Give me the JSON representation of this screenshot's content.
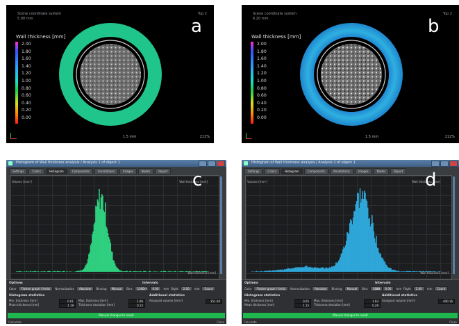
{
  "viewers": [
    {
      "id": "a",
      "header": "Scene coordinate system\n5.00 mm",
      "tag": "Top 2",
      "legend_title": "Wall thickness [mm]",
      "ticks": [
        "2.00",
        "1.80",
        "1.60",
        "1.40",
        "1.20",
        "1.00",
        "0.80",
        "0.60",
        "0.40",
        "0.20",
        "0.00"
      ],
      "panel_label": "a",
      "scale": "1.5 mm",
      "zoom": "212%",
      "ring_color": "#20c58c"
    },
    {
      "id": "b",
      "header": "Scene coordinate system\n6.20 mm",
      "tag": "Top 2",
      "legend_title": "Wall thickness [mm]",
      "ticks": [
        "2.00",
        "1.80",
        "1.60",
        "1.40",
        "1.20",
        "1.00",
        "0.80",
        "0.60",
        "0.40",
        "0.20",
        "0.00"
      ],
      "panel_label": "b",
      "scale": "1.5 mm",
      "zoom": "212%",
      "ring_color": "#2aa2d8"
    }
  ],
  "windows": [
    {
      "id": "c",
      "panel_label": "c",
      "title": "Histogram of Wall thickness analysis / Analysis 1 of object 1",
      "tabs": [
        "Settings",
        "Colors",
        "Histogram",
        "Components",
        "Annotations",
        "Images",
        "Nodes",
        "Report"
      ],
      "active_tab": "Histogram",
      "y_axis": "Volume [mm³]",
      "x_axis": "Wall thickness [mm]",
      "bin_label": "Wall thickness [mm]",
      "options_header": "Options",
      "options_row": [
        "Color",
        "Flatten graph / limits",
        "Normalization",
        "Absolute",
        "Binning",
        "Manual",
        "Bins",
        "1000"
      ],
      "intervals_header": "Intervals",
      "intervals_row": [
        "Left",
        "0.00",
        "mm",
        "Right",
        "2.00",
        "mm",
        "Count"
      ],
      "hist_stats_header": "Histogram statistics",
      "stats": [
        {
          "label": "Min. thickness [mm]",
          "value": "0.01"
        },
        {
          "label": "Mean thickness [mm]",
          "value": "1.19"
        },
        {
          "label": "Max. thickness [mm]",
          "value": "1.96"
        },
        {
          "label": "Thickness deviation [mm]",
          "value": "0.15"
        }
      ],
      "add_stats_header": "Additional statistics",
      "analyzed_label": "Analyzed volume [mm³]",
      "analyzed_value": "351.00",
      "green_bar": "Manual changes to result",
      "footer_left": "Calculate",
      "footer_right": "Close",
      "color": "#2fcf7f",
      "peak_x": 0.44
    },
    {
      "id": "d",
      "panel_label": "d",
      "title": "Histogram of Wall thickness analysis / Analysis 1 of object 1",
      "tabs": [
        "Settings",
        "Colors",
        "Histogram",
        "Components",
        "Annotations",
        "Images",
        "Nodes",
        "Report"
      ],
      "active_tab": "Histogram",
      "y_axis": "Volume [mm³]",
      "x_axis": "Wall thickness [mm]",
      "bin_label": "Wall thickness [mm]",
      "options_header": "Options",
      "options_row": [
        "Color",
        "Flatten graph / limits",
        "Normalization",
        "Absolute",
        "Binning",
        "Manual",
        "Bins",
        "1000"
      ],
      "intervals_header": "Intervals",
      "intervals_row": [
        "Left",
        "0.00",
        "mm",
        "Right",
        "2.00",
        "mm",
        "Count"
      ],
      "hist_stats_header": "Histogram statistics",
      "stats": [
        {
          "label": "Min. thickness [mm]",
          "value": "0.05"
        },
        {
          "label": "Mean thickness [mm]",
          "value": "1.15"
        },
        {
          "label": "Max. thickness [mm]",
          "value": "1.93"
        },
        {
          "label": "Thickness deviation [mm]",
          "value": "0.26"
        }
      ],
      "add_stats_header": "Additional statistics",
      "analyzed_label": "Analyzed volume [mm³]",
      "analyzed_value": "400.16",
      "green_bar": "Manual changes to result",
      "footer_left": "Calculate",
      "footer_right": "Close",
      "color": "#2fa6d8",
      "peak_x": 0.58
    }
  ]
}
